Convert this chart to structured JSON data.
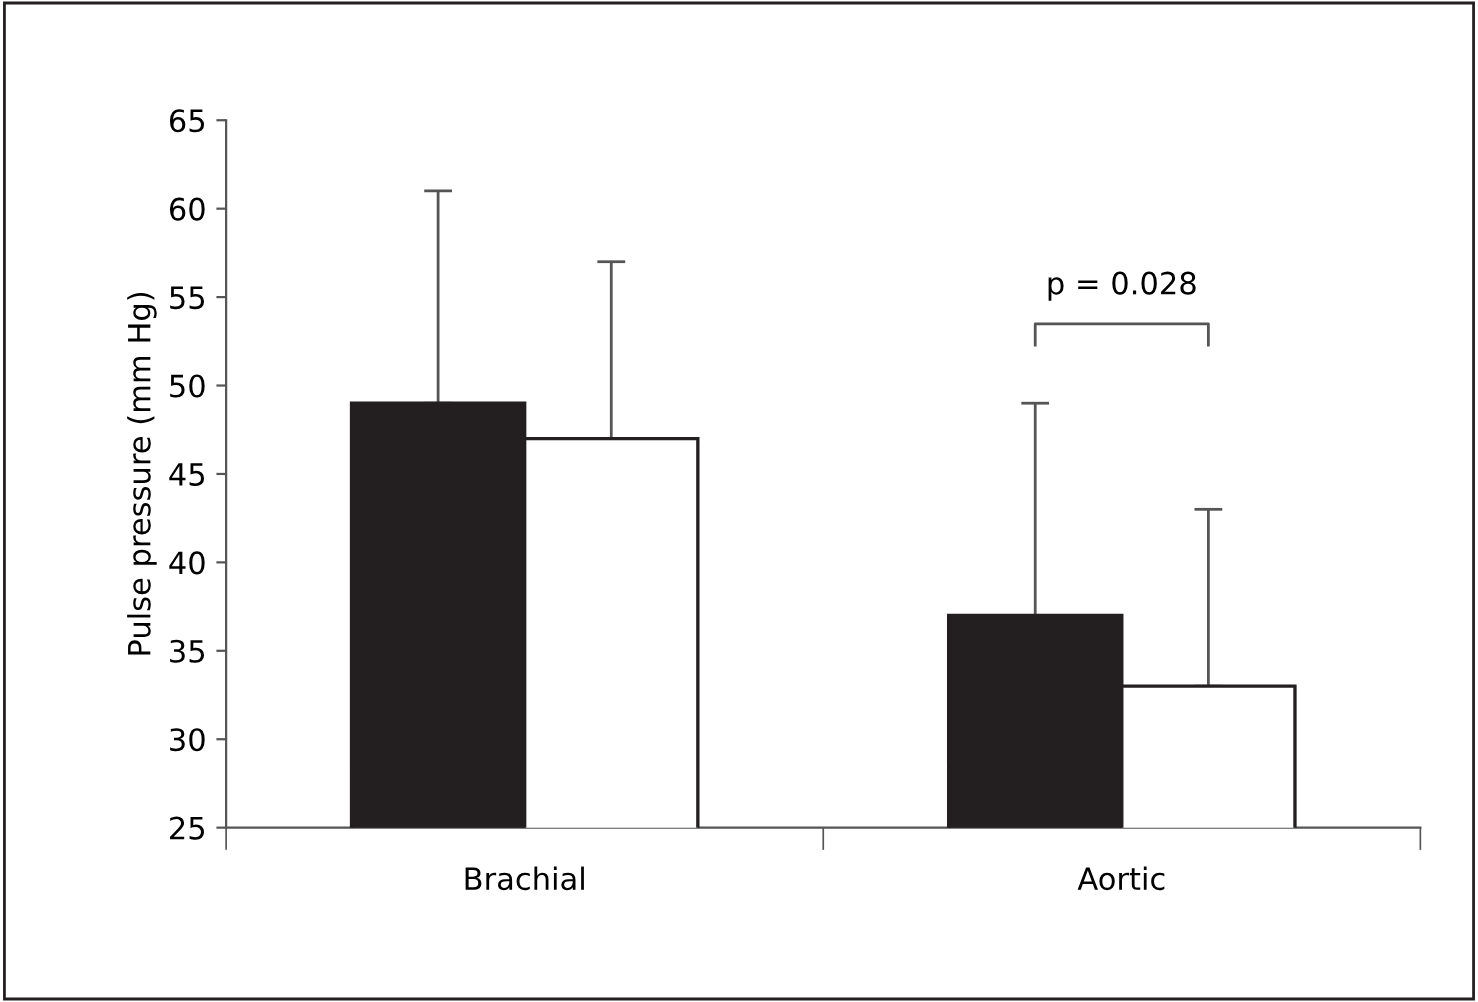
{
  "chart_data": {
    "type": "bar",
    "ylabel": "Pulse pressure (mm Hg)",
    "categories": [
      "Brachial",
      "Aortic"
    ],
    "series": [
      {
        "color": "#231f20",
        "values": [
          49,
          37
        ],
        "errors": [
          [
            49,
            61
          ],
          [
            37,
            49
          ]
        ]
      },
      {
        "color": "#ffffff",
        "values": [
          47,
          33
        ],
        "errors": [
          [
            47,
            57
          ],
          [
            33,
            43
          ]
        ]
      }
    ],
    "ylim": [
      25,
      65
    ],
    "yticks": [
      25,
      30,
      35,
      40,
      45,
      50,
      55,
      60,
      65
    ],
    "grid": false,
    "legend": false,
    "annotations": [
      "p = 0.028"
    ]
  }
}
